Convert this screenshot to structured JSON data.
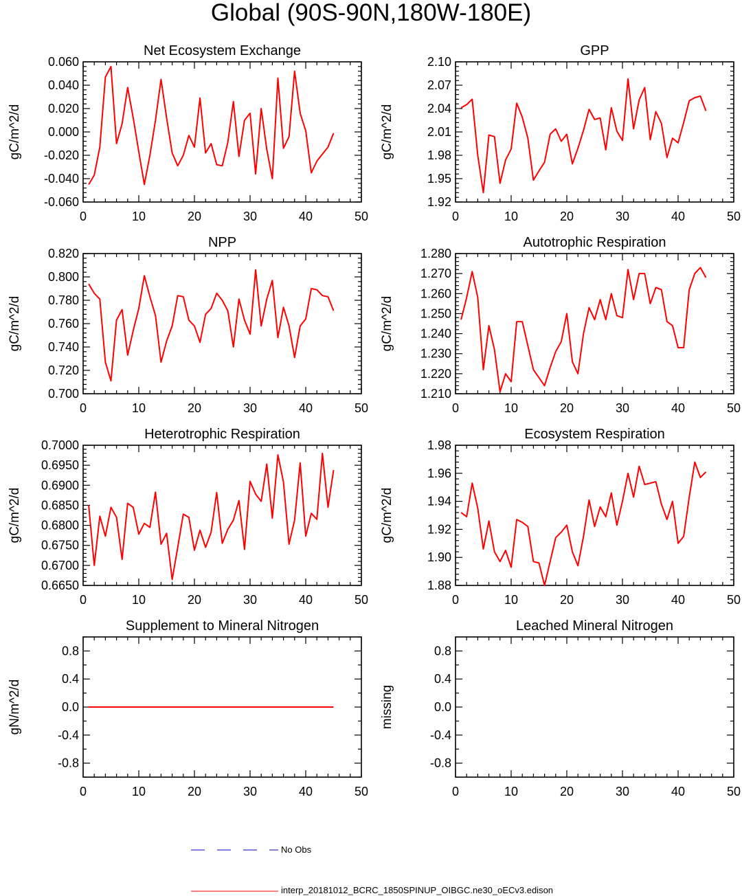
{
  "figure": {
    "title": "Global (90S-90N,180W-180E)",
    "line_color": "#ff0000",
    "obs_color": "#0000cc"
  },
  "legend": {
    "obs_label": "No Obs",
    "run_label": "interp_20181012_BCRC_1850SPINUP_OIBGC.ne30_oECv3.edison"
  },
  "chart_data": [
    {
      "type": "line",
      "title": "Net Ecosystem Exchange",
      "xlabel": "",
      "ylabel": "gC/m^2/d",
      "xlim": [
        0,
        50
      ],
      "ylim": [
        -0.06,
        0.06
      ],
      "xticks": [
        "0",
        "10",
        "20",
        "30",
        "40",
        "50"
      ],
      "yticks": [
        "-0.060",
        "-0.040",
        "-0.020",
        "0.000",
        "0.020",
        "0.040",
        "0.060"
      ],
      "grid": false,
      "x": [
        1,
        2,
        3,
        4,
        5,
        6,
        7,
        8,
        9,
        10,
        11,
        12,
        13,
        14,
        15,
        16,
        17,
        18,
        19,
        20,
        21,
        22,
        23,
        24,
        25,
        26,
        27,
        28,
        29,
        30,
        31,
        32,
        33,
        34,
        35,
        36,
        37,
        38,
        39,
        40,
        41,
        42,
        43,
        44,
        45
      ],
      "series": [
        {
          "values": [
            -0.045,
            -0.037,
            -0.013,
            0.047,
            0.056,
            -0.01,
            0.007,
            0.038,
            0.012,
            -0.017,
            -0.045,
            -0.02,
            0.01,
            0.045,
            0.012,
            -0.018,
            -0.029,
            -0.02,
            -0.003,
            -0.013,
            0.029,
            -0.018,
            -0.01,
            -0.028,
            -0.029,
            -0.009,
            0.026,
            -0.021,
            0.01,
            0.016,
            -0.036,
            0.02,
            -0.015,
            -0.04,
            0.046,
            -0.014,
            -0.004,
            0.052,
            0.016,
            0.001,
            -0.035,
            -0.025,
            -0.019,
            -0.013,
            -0.001
          ]
        }
      ]
    },
    {
      "type": "line",
      "title": "GPP",
      "xlabel": "",
      "ylabel": "gC/m^2/d",
      "xlim": [
        0,
        50
      ],
      "ylim": [
        1.92,
        2.1
      ],
      "xticks": [
        "0",
        "10",
        "20",
        "30",
        "40",
        "50"
      ],
      "yticks": [
        "1.92",
        "1.95",
        "1.98",
        "2.01",
        "2.04",
        "2.07",
        "2.10"
      ],
      "grid": false,
      "x": [
        1,
        2,
        3,
        4,
        5,
        6,
        7,
        8,
        9,
        10,
        11,
        12,
        13,
        14,
        15,
        16,
        17,
        18,
        19,
        20,
        21,
        22,
        23,
        24,
        25,
        26,
        27,
        28,
        29,
        30,
        31,
        32,
        33,
        34,
        35,
        36,
        37,
        38,
        39,
        40,
        41,
        42,
        43,
        44,
        45
      ],
      "series": [
        {
          "values": [
            2.041,
            2.045,
            2.052,
            1.98,
            1.932,
            2.006,
            2.004,
            1.944,
            1.974,
            1.988,
            2.047,
            2.029,
            2.002,
            1.948,
            1.96,
            1.971,
            2.007,
            2.014,
            1.998,
            2.007,
            1.969,
            1.989,
            2.012,
            2.039,
            2.026,
            2.028,
            1.987,
            2.041,
            2.011,
            1.999,
            2.078,
            2.014,
            2.051,
            2.067,
            2.0,
            2.036,
            2.021,
            1.977,
            2.002,
            1.996,
            2.022,
            2.05,
            2.054,
            2.056,
            2.037
          ]
        }
      ]
    },
    {
      "type": "line",
      "title": "NPP",
      "xlabel": "",
      "ylabel": "gC/m^2/d",
      "xlim": [
        0,
        50
      ],
      "ylim": [
        0.7,
        0.82
      ],
      "xticks": [
        "0",
        "10",
        "20",
        "30",
        "40",
        "50"
      ],
      "yticks": [
        "0.700",
        "0.720",
        "0.740",
        "0.760",
        "0.780",
        "0.800",
        "0.820"
      ],
      "grid": false,
      "x": [
        1,
        2,
        3,
        4,
        5,
        6,
        7,
        8,
        9,
        10,
        11,
        12,
        13,
        14,
        15,
        16,
        17,
        18,
        19,
        20,
        21,
        22,
        23,
        24,
        25,
        26,
        27,
        28,
        29,
        30,
        31,
        32,
        33,
        34,
        35,
        36,
        37,
        38,
        39,
        40,
        41,
        42,
        43,
        44,
        45
      ],
      "series": [
        {
          "values": [
            0.794,
            0.786,
            0.781,
            0.727,
            0.711,
            0.763,
            0.772,
            0.733,
            0.754,
            0.773,
            0.801,
            0.783,
            0.767,
            0.727,
            0.745,
            0.758,
            0.784,
            0.783,
            0.763,
            0.758,
            0.744,
            0.768,
            0.773,
            0.786,
            0.78,
            0.771,
            0.74,
            0.781,
            0.763,
            0.751,
            0.806,
            0.758,
            0.781,
            0.797,
            0.748,
            0.774,
            0.758,
            0.731,
            0.758,
            0.764,
            0.79,
            0.789,
            0.784,
            0.783,
            0.771
          ]
        }
      ]
    },
    {
      "type": "line",
      "title": "Autotrophic Respiration",
      "xlabel": "",
      "ylabel": "gC/m^2/d",
      "xlim": [
        0,
        50
      ],
      "ylim": [
        1.21,
        1.28
      ],
      "xticks": [
        "0",
        "10",
        "20",
        "30",
        "40",
        "50"
      ],
      "yticks": [
        "1.210",
        "1.220",
        "1.230",
        "1.240",
        "1.250",
        "1.260",
        "1.270",
        "1.280"
      ],
      "grid": false,
      "x": [
        1,
        2,
        3,
        4,
        5,
        6,
        7,
        8,
        9,
        10,
        11,
        12,
        13,
        14,
        15,
        16,
        17,
        18,
        19,
        20,
        21,
        22,
        23,
        24,
        25,
        26,
        27,
        28,
        29,
        30,
        31,
        32,
        33,
        34,
        35,
        36,
        37,
        38,
        39,
        40,
        41,
        42,
        43,
        44,
        45
      ],
      "series": [
        {
          "values": [
            1.247,
            1.258,
            1.271,
            1.258,
            1.222,
            1.244,
            1.232,
            1.211,
            1.22,
            1.216,
            1.246,
            1.246,
            1.234,
            1.222,
            1.218,
            1.214,
            1.223,
            1.231,
            1.236,
            1.25,
            1.226,
            1.22,
            1.24,
            1.253,
            1.247,
            1.257,
            1.247,
            1.26,
            1.249,
            1.248,
            1.272,
            1.257,
            1.27,
            1.27,
            1.255,
            1.263,
            1.262,
            1.246,
            1.244,
            1.233,
            1.233,
            1.262,
            1.27,
            1.273,
            1.268
          ]
        }
      ]
    },
    {
      "type": "line",
      "title": "Heterotrophic Respiration",
      "xlabel": "",
      "ylabel": "gC/m^2/d",
      "xlim": [
        0,
        50
      ],
      "ylim": [
        0.665,
        0.7
      ],
      "xticks": [
        "0",
        "10",
        "20",
        "30",
        "40",
        "50"
      ],
      "yticks": [
        "0.6650",
        "0.6700",
        "0.6750",
        "0.6800",
        "0.6850",
        "0.6900",
        "0.6950",
        "0.7000"
      ],
      "grid": false,
      "x": [
        1,
        2,
        3,
        4,
        5,
        6,
        7,
        8,
        9,
        10,
        11,
        12,
        13,
        14,
        15,
        16,
        17,
        18,
        19,
        20,
        21,
        22,
        23,
        24,
        25,
        26,
        27,
        28,
        29,
        30,
        31,
        32,
        33,
        34,
        35,
        36,
        37,
        38,
        39,
        40,
        41,
        42,
        43,
        44,
        45
      ],
      "series": [
        {
          "values": [
            0.685,
            0.67,
            0.6823,
            0.6773,
            0.6845,
            0.682,
            0.6715,
            0.6855,
            0.6845,
            0.6778,
            0.6805,
            0.6795,
            0.6883,
            0.6753,
            0.678,
            0.6665,
            0.6745,
            0.6828,
            0.682,
            0.6738,
            0.6788,
            0.6745,
            0.6783,
            0.6882,
            0.6755,
            0.679,
            0.6813,
            0.6862,
            0.674,
            0.691,
            0.6878,
            0.686,
            0.6953,
            0.6818,
            0.6976,
            0.6908,
            0.6753,
            0.6813,
            0.6956,
            0.6773,
            0.683,
            0.6815,
            0.698,
            0.6845,
            0.6938
          ]
        }
      ]
    },
    {
      "type": "line",
      "title": "Ecosystem Respiration",
      "xlabel": "",
      "ylabel": "gC/m^2/d",
      "xlim": [
        0,
        50
      ],
      "ylim": [
        1.88,
        1.98
      ],
      "xticks": [
        "0",
        "10",
        "20",
        "30",
        "40",
        "50"
      ],
      "yticks": [
        "1.88",
        "1.90",
        "1.92",
        "1.94",
        "1.96",
        "1.98"
      ],
      "grid": false,
      "x": [
        1,
        2,
        3,
        4,
        5,
        6,
        7,
        8,
        9,
        10,
        11,
        12,
        13,
        14,
        15,
        16,
        17,
        18,
        19,
        20,
        21,
        22,
        23,
        24,
        25,
        26,
        27,
        28,
        29,
        30,
        31,
        32,
        33,
        34,
        35,
        36,
        37,
        38,
        39,
        40,
        41,
        42,
        43,
        44,
        45
      ],
      "series": [
        {
          "values": [
            1.932,
            1.929,
            1.953,
            1.935,
            1.906,
            1.926,
            1.904,
            1.897,
            1.905,
            1.893,
            1.927,
            1.925,
            1.922,
            1.897,
            1.896,
            1.88,
            1.897,
            1.914,
            1.918,
            1.923,
            1.904,
            1.894,
            1.915,
            1.941,
            1.922,
            1.936,
            1.929,
            1.946,
            1.923,
            1.94,
            1.96,
            1.943,
            1.965,
            1.952,
            1.953,
            1.954,
            1.938,
            1.927,
            1.94,
            1.91,
            1.915,
            1.943,
            1.968,
            1.957,
            1.961
          ]
        }
      ]
    },
    {
      "type": "line",
      "title": "Supplement to Mineral Nitrogen",
      "xlabel": "",
      "ylabel": "gN/m^2/d",
      "xlim": [
        0,
        50
      ],
      "ylim": [
        -1.0,
        1.0
      ],
      "xticks": [
        "0",
        "10",
        "20",
        "30",
        "40",
        "50"
      ],
      "yticks": [
        "-0.8",
        "-0.4",
        "0.0",
        "0.4",
        "0.8"
      ],
      "ytick_values": [
        -0.8,
        -0.4,
        0.0,
        0.4,
        0.8
      ],
      "grid": false,
      "x": [
        1,
        2,
        3,
        4,
        5,
        6,
        7,
        8,
        9,
        10,
        11,
        12,
        13,
        14,
        15,
        16,
        17,
        18,
        19,
        20,
        21,
        22,
        23,
        24,
        25,
        26,
        27,
        28,
        29,
        30,
        31,
        32,
        33,
        34,
        35,
        36,
        37,
        38,
        39,
        40,
        41,
        42,
        43,
        44,
        45
      ],
      "series": [
        {
          "values": [
            0,
            0,
            0,
            0,
            0,
            0,
            0,
            0,
            0,
            0,
            0,
            0,
            0,
            0,
            0,
            0,
            0,
            0,
            0,
            0,
            0,
            0,
            0,
            0,
            0,
            0,
            0,
            0,
            0,
            0,
            0,
            0,
            0,
            0,
            0,
            0,
            0,
            0,
            0,
            0,
            0,
            0,
            0,
            0,
            0
          ]
        }
      ]
    },
    {
      "type": "line",
      "title": "Leached Mineral Nitrogen",
      "xlabel": "",
      "ylabel": "missing",
      "xlim": [
        0,
        50
      ],
      "ylim": [
        -1.0,
        1.0
      ],
      "xticks": [
        "0",
        "10",
        "20",
        "30",
        "40",
        "50"
      ],
      "yticks": [
        "-0.8",
        "-0.4",
        "0.0",
        "0.4",
        "0.8"
      ],
      "ytick_values": [
        -0.8,
        -0.4,
        0.0,
        0.4,
        0.8
      ],
      "grid": false,
      "x": [],
      "series": []
    }
  ]
}
